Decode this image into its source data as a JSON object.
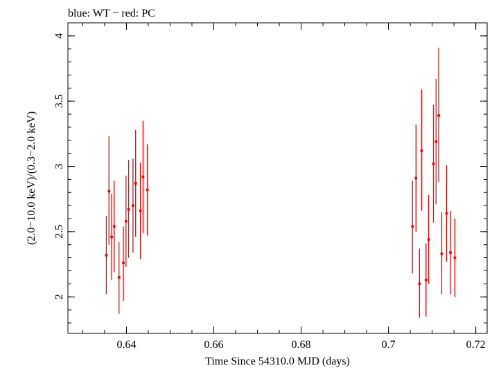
{
  "chart_data": {
    "type": "scatter",
    "title": "blue: WT − red: PC",
    "xlabel": "Time Since 54310.0 MJD (days)",
    "ylabel": "(2.0−10.0 keV)/(0.3−2.0 keV)",
    "xlim": [
      0.6266,
      0.7226
    ],
    "ylim": [
      1.72,
      4.1
    ],
    "grid": false,
    "x_ticks": [
      {
        "value": 0.64,
        "label": "0.64"
      },
      {
        "value": 0.66,
        "label": "0.66"
      },
      {
        "value": 0.68,
        "label": "0.68"
      },
      {
        "value": 0.7,
        "label": "0.7"
      },
      {
        "value": 0.72,
        "label": "0.72"
      }
    ],
    "y_ticks": [
      {
        "value": 2.0,
        "label": "2"
      },
      {
        "value": 2.5,
        "label": "2.5"
      },
      {
        "value": 3.0,
        "label": "3"
      },
      {
        "value": 3.5,
        "label": "3.5"
      },
      {
        "value": 4.0,
        "label": "4"
      }
    ],
    "x_minor_step": 0.005,
    "y_minor_step": 0.1,
    "colors": {
      "pc": "#ff0000",
      "axes": "#000000"
    },
    "series": [
      {
        "points": [
          {
            "x": 0.6354,
            "y": 2.32,
            "ylo": 2.02,
            "yhi": 2.62,
            "xerr": 0.0003
          },
          {
            "x": 0.636,
            "y": 2.81,
            "ylo": 2.4,
            "yhi": 3.23,
            "xerr": 0.0003
          },
          {
            "x": 0.6366,
            "y": 2.46,
            "ylo": 2.13,
            "yhi": 2.79,
            "xerr": 0.0003
          },
          {
            "x": 0.6372,
            "y": 2.54,
            "ylo": 2.19,
            "yhi": 2.89,
            "xerr": 0.0003
          },
          {
            "x": 0.6383,
            "y": 2.15,
            "ylo": 1.87,
            "yhi": 2.42,
            "xerr": 0.0003
          },
          {
            "x": 0.6393,
            "y": 2.26,
            "ylo": 1.97,
            "yhi": 2.54,
            "xerr": 0.0003
          },
          {
            "x": 0.6399,
            "y": 2.58,
            "ylo": 2.23,
            "yhi": 2.93,
            "xerr": 0.0003
          },
          {
            "x": 0.6405,
            "y": 2.67,
            "ylo": 2.3,
            "yhi": 3.05,
            "xerr": 0.0003
          },
          {
            "x": 0.6415,
            "y": 2.7,
            "ylo": 2.34,
            "yhi": 3.06,
            "xerr": 0.0003
          },
          {
            "x": 0.6421,
            "y": 2.87,
            "ylo": 2.46,
            "yhi": 3.28,
            "xerr": 0.0003
          },
          {
            "x": 0.6432,
            "y": 2.66,
            "ylo": 2.29,
            "yhi": 3.03,
            "xerr": 0.0003
          },
          {
            "x": 0.6438,
            "y": 2.92,
            "ylo": 2.49,
            "yhi": 3.35,
            "xerr": 0.0003
          },
          {
            "x": 0.6448,
            "y": 2.82,
            "ylo": 2.47,
            "yhi": 3.17,
            "xerr": 0.0003
          },
          {
            "x": 0.7055,
            "y": 2.54,
            "ylo": 2.18,
            "yhi": 2.89,
            "xerr": 0.0003
          },
          {
            "x": 0.7063,
            "y": 2.91,
            "ylo": 2.5,
            "yhi": 3.32,
            "xerr": 0.0003
          },
          {
            "x": 0.7071,
            "y": 2.1,
            "ylo": 1.84,
            "yhi": 2.37,
            "xerr": 0.0003
          },
          {
            "x": 0.7076,
            "y": 3.12,
            "ylo": 2.66,
            "yhi": 3.59,
            "xerr": 0.0003
          },
          {
            "x": 0.7086,
            "y": 2.13,
            "ylo": 1.85,
            "yhi": 2.41,
            "xerr": 0.0003
          },
          {
            "x": 0.7092,
            "y": 2.44,
            "ylo": 2.1,
            "yhi": 2.78,
            "xerr": 0.0003
          },
          {
            "x": 0.7103,
            "y": 3.02,
            "ylo": 2.57,
            "yhi": 3.47,
            "xerr": 0.0003
          },
          {
            "x": 0.7109,
            "y": 3.19,
            "ylo": 2.71,
            "yhi": 3.67,
            "xerr": 0.0003
          },
          {
            "x": 0.7115,
            "y": 3.39,
            "ylo": 2.88,
            "yhi": 3.91,
            "xerr": 0.0003
          },
          {
            "x": 0.7122,
            "y": 2.33,
            "ylo": 2.02,
            "yhi": 2.65,
            "xerr": 0.0003
          },
          {
            "x": 0.7133,
            "y": 2.64,
            "ylo": 2.27,
            "yhi": 3.01,
            "xerr": 0.0003
          },
          {
            "x": 0.7142,
            "y": 2.34,
            "ylo": 2.02,
            "yhi": 2.66,
            "xerr": 0.0003
          },
          {
            "x": 0.7152,
            "y": 2.3,
            "ylo": 2.0,
            "yhi": 2.6,
            "xerr": 0.0003
          }
        ]
      }
    ]
  }
}
